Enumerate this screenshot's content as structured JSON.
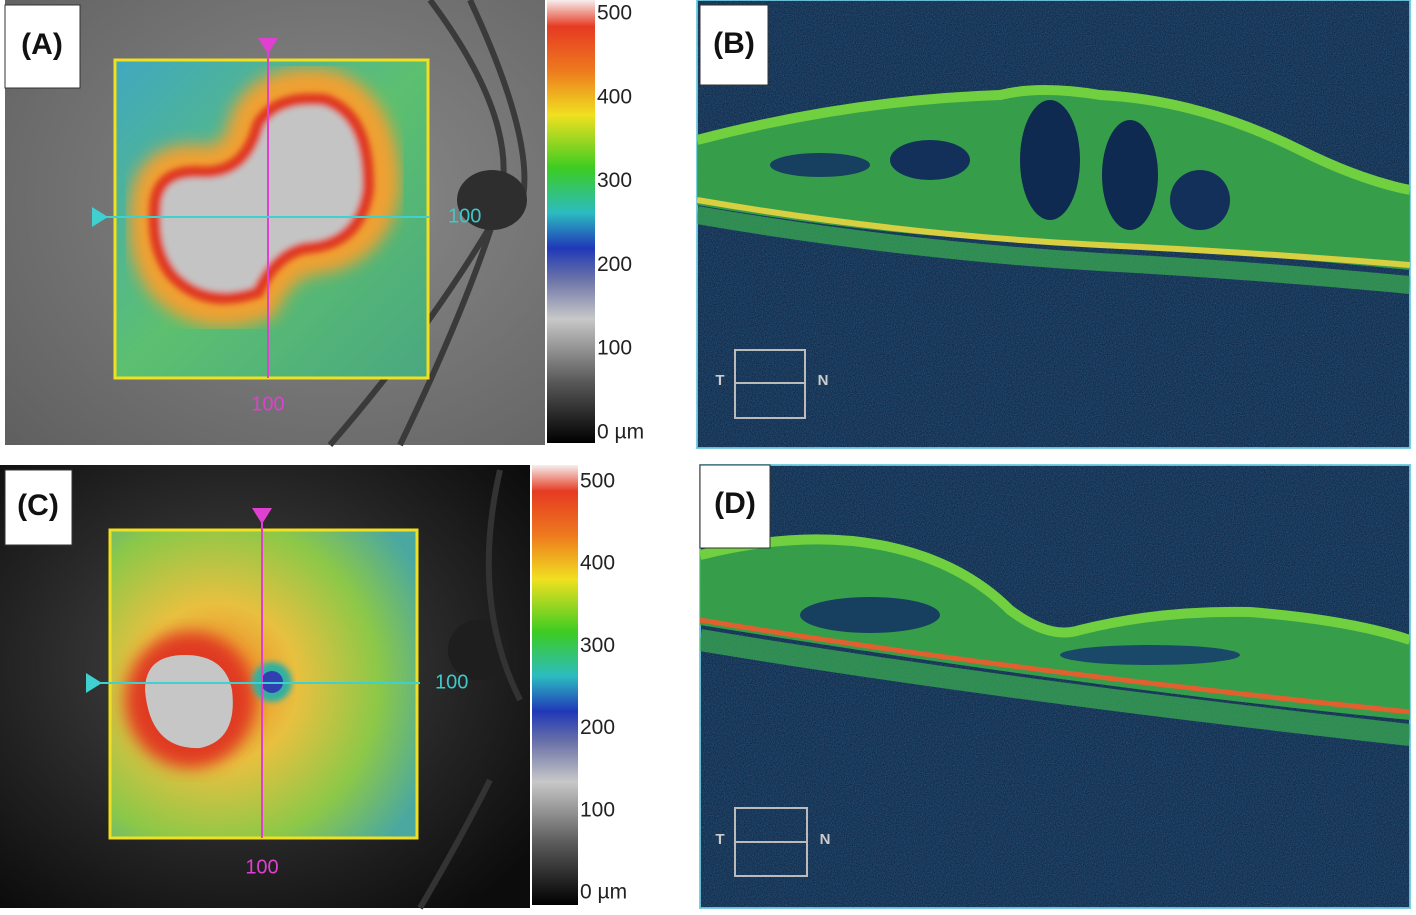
{
  "panels": [
    {
      "label": "(A)",
      "colorbar": {
        "labels": [
          500,
          400,
          300,
          200,
          100,
          "0 µm"
        ]
      },
      "scan_labels": {
        "horizontal": 100,
        "vertical": 100
      }
    },
    {
      "label": "(B)",
      "direction": {
        "left": "T",
        "right": "N"
      }
    },
    {
      "label": "(C)",
      "colorbar": {
        "labels": [
          500,
          400,
          300,
          200,
          100,
          "0 µm"
        ]
      },
      "scan_labels": {
        "horizontal": 100,
        "vertical": 100
      }
    },
    {
      "label": "(D)",
      "direction": {
        "left": "T",
        "right": "N"
      }
    }
  ]
}
